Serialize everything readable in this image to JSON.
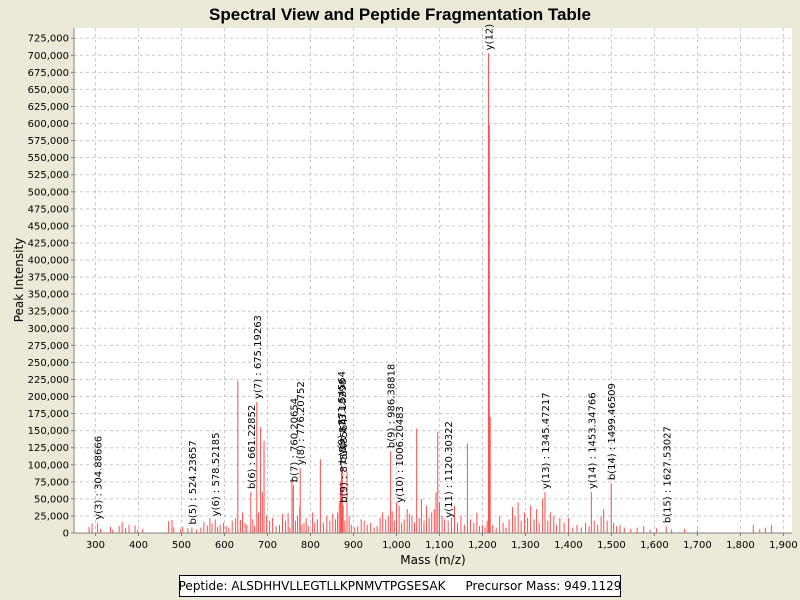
{
  "chart_data": {
    "type": "bar",
    "title": "Spectral View and Peptide Fragmentation Table",
    "xlabel": "Mass (m/z)",
    "ylabel": "Peak Intensity",
    "xlim": [
      250,
      1920
    ],
    "ylim": [
      0,
      740000
    ],
    "grid": true,
    "colors": {
      "peak": "#ff4d4d",
      "grid": "#c8c8c8",
      "plot_bg": "#ffffff",
      "page_bg": "#ece9d8"
    },
    "xticks": [
      300,
      400,
      500,
      600,
      700,
      800,
      900,
      1000,
      1100,
      1200,
      1300,
      1400,
      1500,
      1600,
      1700,
      1800,
      1900
    ],
    "xtick_labels": [
      "300",
      "400",
      "500",
      "600",
      "700",
      "800",
      "900",
      "1,000",
      "1,100",
      "1,200",
      "1,300",
      "1,400",
      "1,500",
      "1,600",
      "1,700",
      "1,800",
      "1,900"
    ],
    "yticks": [
      0,
      25000,
      50000,
      75000,
      100000,
      125000,
      150000,
      175000,
      200000,
      225000,
      250000,
      275000,
      300000,
      325000,
      350000,
      375000,
      400000,
      425000,
      450000,
      475000,
      500000,
      525000,
      550000,
      575000,
      600000,
      625000,
      650000,
      675000,
      700000,
      725000
    ],
    "ytick_labels": [
      "0",
      "25,000",
      "50,000",
      "75,000",
      "100,000",
      "125,000",
      "150,000",
      "175,000",
      "200,000",
      "225,000",
      "250,000",
      "275,000",
      "300,000",
      "325,000",
      "350,000",
      "375,000",
      "400,000",
      "425,000",
      "450,000",
      "475,000",
      "500,000",
      "525,000",
      "550,000",
      "575,000",
      "600,000",
      "625,000",
      "650,000",
      "675,000",
      "700,000",
      "725,000"
    ],
    "peaks": [
      {
        "x": 285,
        "y": 9000
      },
      {
        "x": 292,
        "y": 14000
      },
      {
        "x": 304.9,
        "y": 15000
      },
      {
        "x": 312,
        "y": 6000
      },
      {
        "x": 335,
        "y": 9000
      },
      {
        "x": 340,
        "y": 5000
      },
      {
        "x": 355,
        "y": 10000
      },
      {
        "x": 362,
        "y": 16000
      },
      {
        "x": 370,
        "y": 7000
      },
      {
        "x": 378,
        "y": 12000
      },
      {
        "x": 392,
        "y": 11000
      },
      {
        "x": 398,
        "y": 5000
      },
      {
        "x": 410,
        "y": 6000
      },
      {
        "x": 470,
        "y": 17000
      },
      {
        "x": 478,
        "y": 19000
      },
      {
        "x": 482,
        "y": 8000
      },
      {
        "x": 498,
        "y": 6000
      },
      {
        "x": 503,
        "y": 9000
      },
      {
        "x": 515,
        "y": 7000
      },
      {
        "x": 524.2,
        "y": 8000
      },
      {
        "x": 535,
        "y": 5000
      },
      {
        "x": 545,
        "y": 8000
      },
      {
        "x": 552,
        "y": 16000
      },
      {
        "x": 560,
        "y": 11000
      },
      {
        "x": 566,
        "y": 22000
      },
      {
        "x": 571,
        "y": 14000
      },
      {
        "x": 578.5,
        "y": 20000
      },
      {
        "x": 584,
        "y": 9000
      },
      {
        "x": 590,
        "y": 12000
      },
      {
        "x": 598,
        "y": 15000
      },
      {
        "x": 604,
        "y": 10000
      },
      {
        "x": 610,
        "y": 8000
      },
      {
        "x": 618,
        "y": 18000
      },
      {
        "x": 626,
        "y": 22000
      },
      {
        "x": 631,
        "y": 223000
      },
      {
        "x": 637,
        "y": 19000
      },
      {
        "x": 642,
        "y": 30000
      },
      {
        "x": 648,
        "y": 15000
      },
      {
        "x": 652,
        "y": 12000
      },
      {
        "x": 661.2,
        "y": 60000
      },
      {
        "x": 666,
        "y": 20000
      },
      {
        "x": 670,
        "y": 10000
      },
      {
        "x": 675.2,
        "y": 192000
      },
      {
        "x": 679,
        "y": 30000
      },
      {
        "x": 684,
        "y": 155000
      },
      {
        "x": 688,
        "y": 60000
      },
      {
        "x": 692,
        "y": 135000
      },
      {
        "x": 698,
        "y": 25000
      },
      {
        "x": 705,
        "y": 18000
      },
      {
        "x": 712,
        "y": 22000
      },
      {
        "x": 720,
        "y": 10000
      },
      {
        "x": 728,
        "y": 12000
      },
      {
        "x": 735,
        "y": 28000
      },
      {
        "x": 742,
        "y": 18000
      },
      {
        "x": 748,
        "y": 29000
      },
      {
        "x": 752,
        "y": 8000
      },
      {
        "x": 757,
        "y": 80000
      },
      {
        "x": 760.2,
        "y": 70000
      },
      {
        "x": 765,
        "y": 18000
      },
      {
        "x": 770,
        "y": 25000
      },
      {
        "x": 775,
        "y": 38000
      },
      {
        "x": 776.2,
        "y": 95000
      },
      {
        "x": 780,
        "y": 12000
      },
      {
        "x": 785,
        "y": 15000
      },
      {
        "x": 790,
        "y": 22000
      },
      {
        "x": 795,
        "y": 10000
      },
      {
        "x": 805,
        "y": 30000
      },
      {
        "x": 810,
        "y": 15000
      },
      {
        "x": 816,
        "y": 20000
      },
      {
        "x": 823,
        "y": 108000
      },
      {
        "x": 830,
        "y": 15000
      },
      {
        "x": 838,
        "y": 25000
      },
      {
        "x": 845,
        "y": 18000
      },
      {
        "x": 852,
        "y": 28000
      },
      {
        "x": 858,
        "y": 20000
      },
      {
        "x": 863,
        "y": 30000
      },
      {
        "x": 867,
        "y": 45000
      },
      {
        "x": 870,
        "y": 75000
      },
      {
        "x": 872,
        "y": 110000
      },
      {
        "x": 874,
        "y": 98000
      },
      {
        "x": 876,
        "y": 40000
      },
      {
        "x": 880,
        "y": 18000
      },
      {
        "x": 885,
        "y": 90000
      },
      {
        "x": 890,
        "y": 25000
      },
      {
        "x": 895,
        "y": 12000
      },
      {
        "x": 902,
        "y": 8000
      },
      {
        "x": 910,
        "y": 10000
      },
      {
        "x": 918,
        "y": 20000
      },
      {
        "x": 925,
        "y": 18000
      },
      {
        "x": 932,
        "y": 12000
      },
      {
        "x": 940,
        "y": 15000
      },
      {
        "x": 948,
        "y": 8000
      },
      {
        "x": 955,
        "y": 10000
      },
      {
        "x": 962,
        "y": 22000
      },
      {
        "x": 968,
        "y": 30000
      },
      {
        "x": 975,
        "y": 20000
      },
      {
        "x": 981,
        "y": 25000
      },
      {
        "x": 986.4,
        "y": 120000
      },
      {
        "x": 990,
        "y": 32000
      },
      {
        "x": 995,
        "y": 18000
      },
      {
        "x": 1000,
        "y": 45000
      },
      {
        "x": 1006.2,
        "y": 40000
      },
      {
        "x": 1012,
        "y": 15000
      },
      {
        "x": 1018,
        "y": 20000
      },
      {
        "x": 1025,
        "y": 35000
      },
      {
        "x": 1030,
        "y": 28000
      },
      {
        "x": 1036,
        "y": 25000
      },
      {
        "x": 1042,
        "y": 15000
      },
      {
        "x": 1047,
        "y": 153000
      },
      {
        "x": 1053,
        "y": 22000
      },
      {
        "x": 1058,
        "y": 50000
      },
      {
        "x": 1064,
        "y": 18000
      },
      {
        "x": 1070,
        "y": 40000
      },
      {
        "x": 1076,
        "y": 22000
      },
      {
        "x": 1082,
        "y": 30000
      },
      {
        "x": 1088,
        "y": 35000
      },
      {
        "x": 1092,
        "y": 60000
      },
      {
        "x": 1096,
        "y": 148000
      },
      {
        "x": 1100,
        "y": 45000
      },
      {
        "x": 1106,
        "y": 25000
      },
      {
        "x": 1112,
        "y": 20000
      },
      {
        "x": 1120.3,
        "y": 18000
      },
      {
        "x": 1128,
        "y": 22000
      },
      {
        "x": 1135,
        "y": 40000
      },
      {
        "x": 1142,
        "y": 15000
      },
      {
        "x": 1150,
        "y": 25000
      },
      {
        "x": 1158,
        "y": 12000
      },
      {
        "x": 1165,
        "y": 131000
      },
      {
        "x": 1172,
        "y": 20000
      },
      {
        "x": 1180,
        "y": 15000
      },
      {
        "x": 1187,
        "y": 30000
      },
      {
        "x": 1193,
        "y": 10000
      },
      {
        "x": 1200,
        "y": 12000
      },
      {
        "x": 1206,
        "y": 8000
      },
      {
        "x": 1211,
        "y": 18000
      },
      {
        "x": 1214,
        "y": 703000
      },
      {
        "x": 1216,
        "y": 598000
      },
      {
        "x": 1218,
        "y": 170000
      },
      {
        "x": 1224,
        "y": 12000
      },
      {
        "x": 1232,
        "y": 8000
      },
      {
        "x": 1240,
        "y": 25000
      },
      {
        "x": 1248,
        "y": 15000
      },
      {
        "x": 1255,
        "y": 8000
      },
      {
        "x": 1262,
        "y": 20000
      },
      {
        "x": 1270,
        "y": 38000
      },
      {
        "x": 1276,
        "y": 25000
      },
      {
        "x": 1283,
        "y": 45000
      },
      {
        "x": 1290,
        "y": 18000
      },
      {
        "x": 1298,
        "y": 30000
      },
      {
        "x": 1305,
        "y": 22000
      },
      {
        "x": 1312,
        "y": 40000
      },
      {
        "x": 1320,
        "y": 20000
      },
      {
        "x": 1326,
        "y": 35000
      },
      {
        "x": 1332,
        "y": 15000
      },
      {
        "x": 1340,
        "y": 50000
      },
      {
        "x": 1345.5,
        "y": 60000
      },
      {
        "x": 1352,
        "y": 18000
      },
      {
        "x": 1358,
        "y": 30000
      },
      {
        "x": 1366,
        "y": 25000
      },
      {
        "x": 1372,
        "y": 12000
      },
      {
        "x": 1380,
        "y": 22000
      },
      {
        "x": 1390,
        "y": 15000
      },
      {
        "x": 1400,
        "y": 22000
      },
      {
        "x": 1410,
        "y": 8000
      },
      {
        "x": 1420,
        "y": 12000
      },
      {
        "x": 1430,
        "y": 8000
      },
      {
        "x": 1440,
        "y": 15000
      },
      {
        "x": 1448,
        "y": 10000
      },
      {
        "x": 1453.3,
        "y": 60000
      },
      {
        "x": 1460,
        "y": 18000
      },
      {
        "x": 1468,
        "y": 12000
      },
      {
        "x": 1476,
        "y": 25000
      },
      {
        "x": 1482,
        "y": 35000
      },
      {
        "x": 1490,
        "y": 18000
      },
      {
        "x": 1499.5,
        "y": 73000
      },
      {
        "x": 1505,
        "y": 15000
      },
      {
        "x": 1512,
        "y": 10000
      },
      {
        "x": 1520,
        "y": 12000
      },
      {
        "x": 1530,
        "y": 8000
      },
      {
        "x": 1545,
        "y": 6000
      },
      {
        "x": 1560,
        "y": 8000
      },
      {
        "x": 1575,
        "y": 10000
      },
      {
        "x": 1590,
        "y": 5000
      },
      {
        "x": 1605,
        "y": 7000
      },
      {
        "x": 1627.5,
        "y": 10000
      },
      {
        "x": 1640,
        "y": 5000
      },
      {
        "x": 1670,
        "y": 6000
      },
      {
        "x": 1700,
        "y": 4000
      },
      {
        "x": 1830,
        "y": 12000
      },
      {
        "x": 1845,
        "y": 6000
      },
      {
        "x": 1858,
        "y": 8000
      },
      {
        "x": 1872,
        "y": 12000
      }
    ],
    "annotations": [
      {
        "x": 304.89,
        "y": 15000,
        "text": "y(3) : 304.88666"
      },
      {
        "x": 524.24,
        "y": 8000,
        "text": "b(5) : 524.23657"
      },
      {
        "x": 578.52,
        "y": 20000,
        "text": "y(6) : 578.52185"
      },
      {
        "x": 661.23,
        "y": 60000,
        "text": "b(6) : 661.22852"
      },
      {
        "x": 675.19,
        "y": 192000,
        "text": "y(7) : 675.19263"
      },
      {
        "x": 760.21,
        "y": 70000,
        "text": "b(7) : 760.20654"
      },
      {
        "x": 776.21,
        "y": 95000,
        "text": "y(8) : 776.20752"
      },
      {
        "x": 871.5,
        "y": 110000,
        "text": "y(9) : 871.54564"
      },
      {
        "x": 873.6,
        "y": 98000,
        "text": "b(8) : 873.18298"
      },
      {
        "x": 875.6,
        "y": 40000,
        "text": "b(9) : 875.48564"
      },
      {
        "x": 986.39,
        "y": 120000,
        "text": "b(9) : 986.38818"
      },
      {
        "x": 1006.2,
        "y": 40000,
        "text": "y(10) : 1006.20483"
      },
      {
        "x": 1120.3,
        "y": 18000,
        "text": "y(11) : 1120.30322"
      },
      {
        "x": 1214,
        "y": 703000,
        "text": "y(12)"
      },
      {
        "x": 1345.47,
        "y": 60000,
        "text": "y(13) : 1345.47217"
      },
      {
        "x": 1453.35,
        "y": 60000,
        "text": "y(14) : 1453.34766"
      },
      {
        "x": 1499.47,
        "y": 73000,
        "text": "b(14) : 1499.46509"
      },
      {
        "x": 1627.53,
        "y": 10000,
        "text": "b(15) : 1627.53027"
      }
    ]
  },
  "footer": {
    "peptide": "Peptide: ALSDHHVLLEGTLLKPNMVTPGSESAK",
    "precursor": "Precursor Mass: 949.1129"
  }
}
